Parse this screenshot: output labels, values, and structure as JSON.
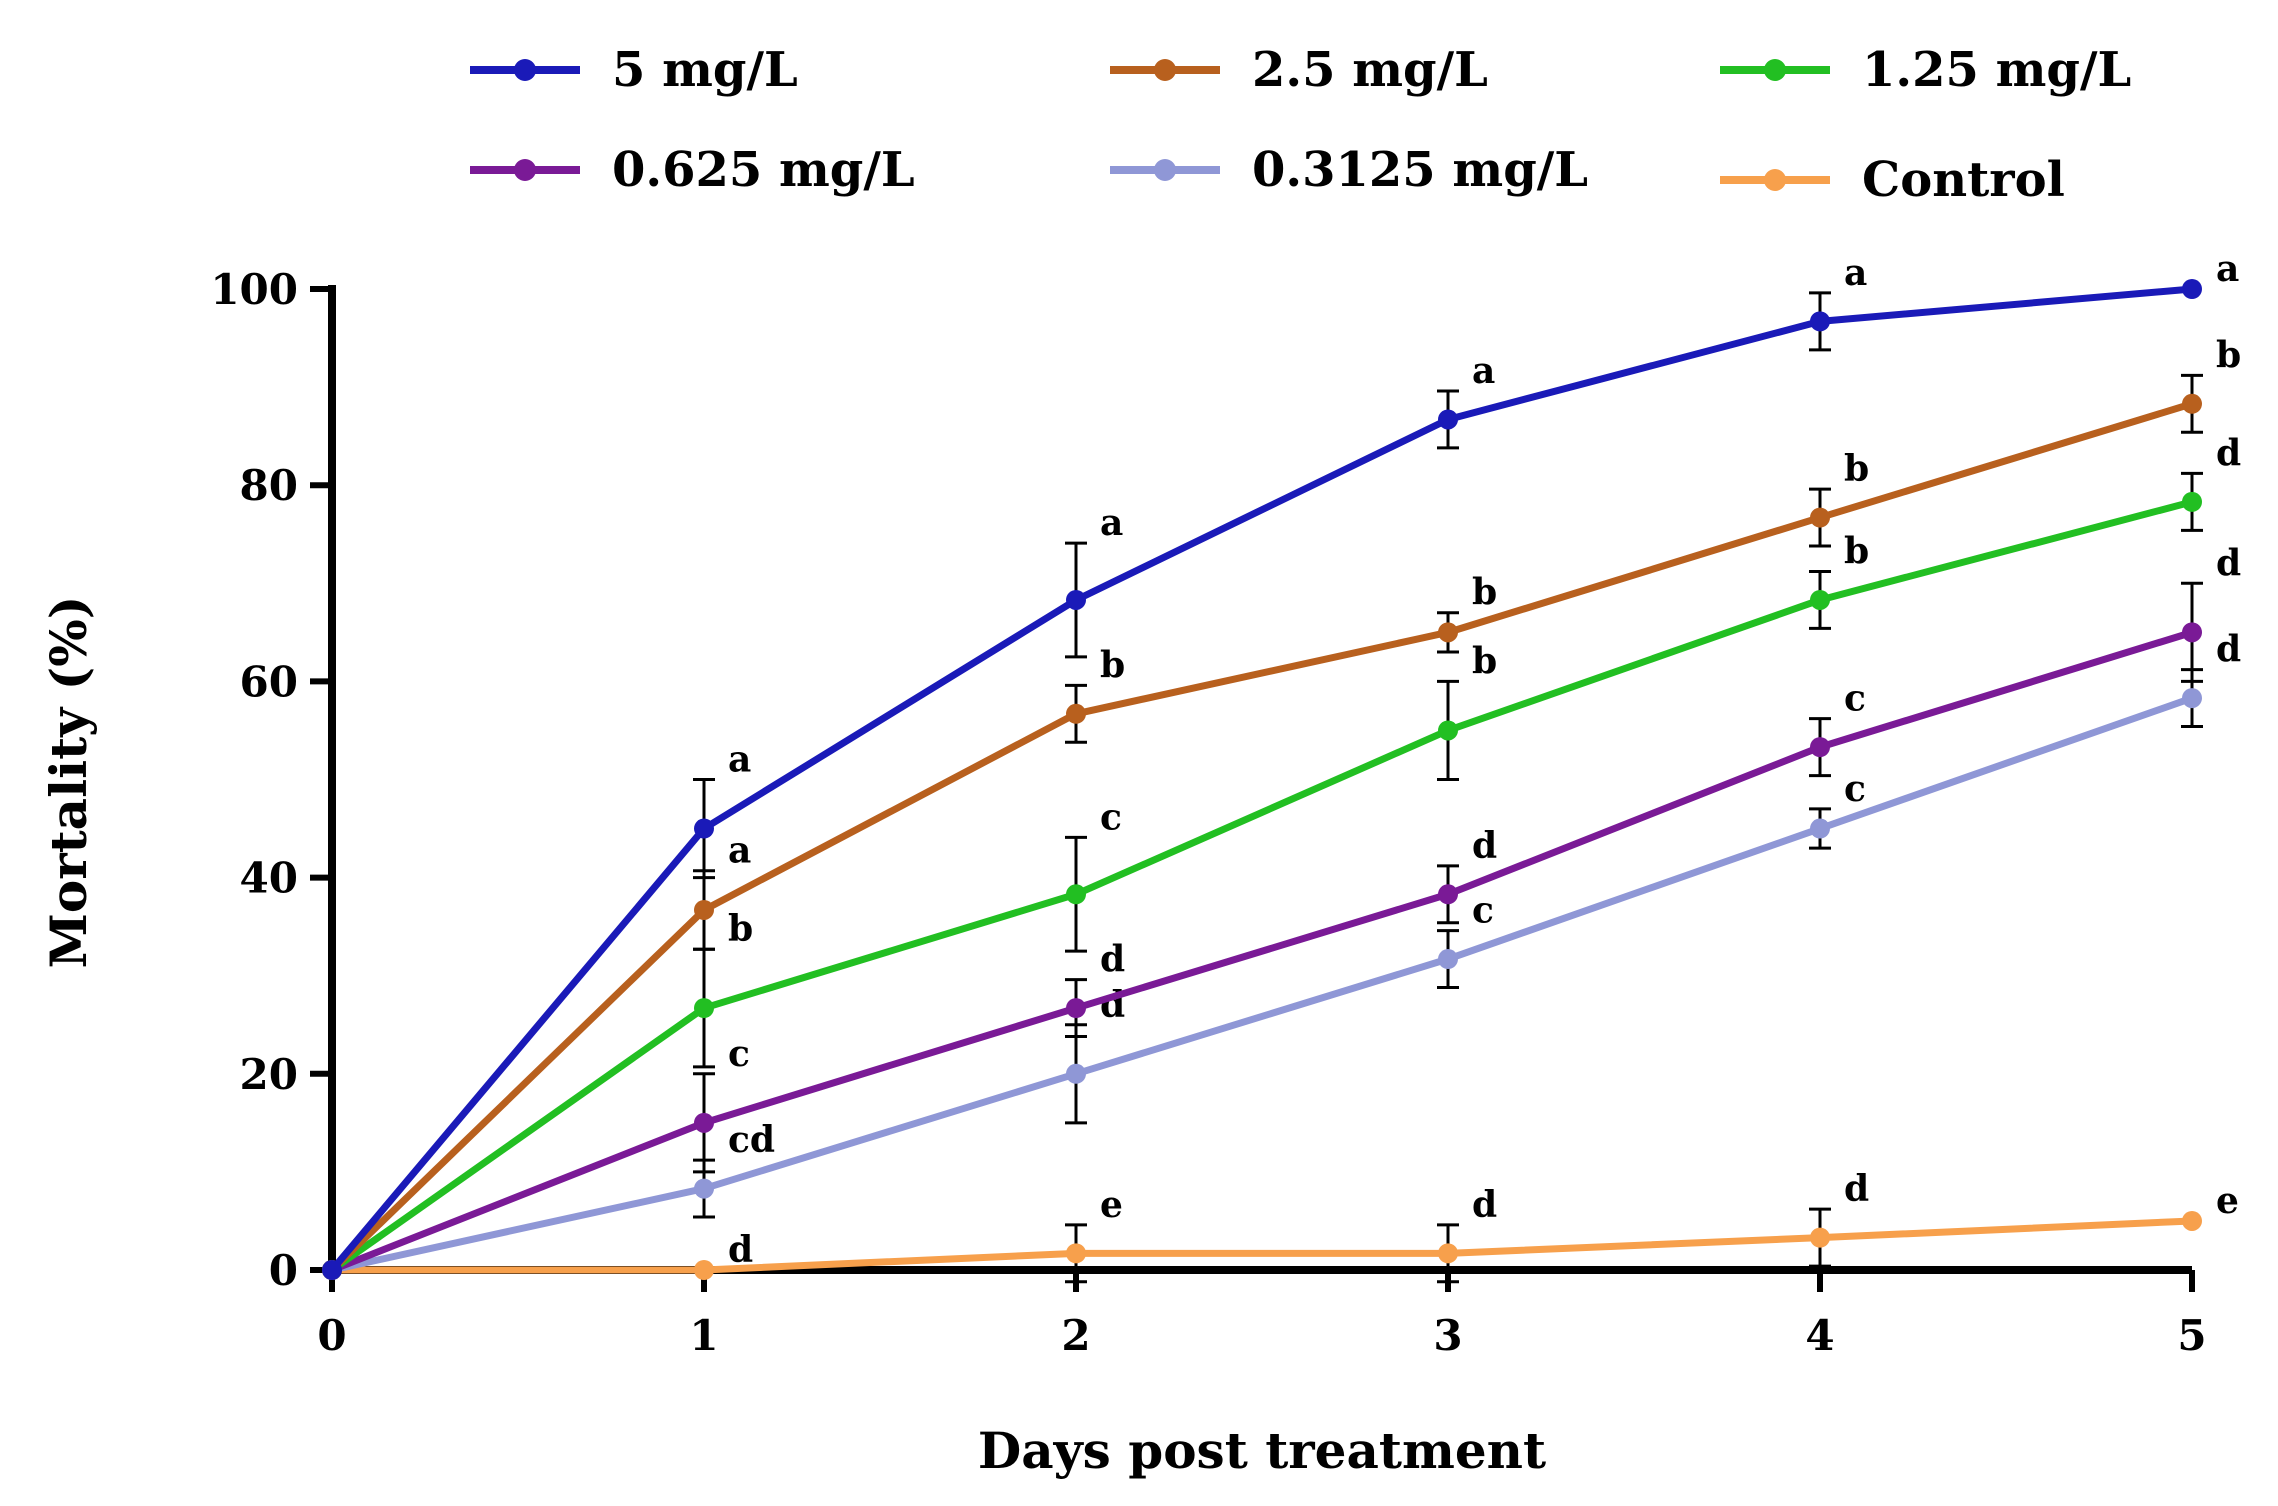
{
  "chart_data": {
    "type": "line",
    "title": "",
    "xlabel": "Days post treatment",
    "ylabel": "Mortality (%)",
    "x": [
      0,
      1,
      2,
      3,
      4,
      5
    ],
    "xlim": [
      0,
      5
    ],
    "ylim": [
      0,
      100
    ],
    "x_ticks": [
      "0",
      "1",
      "2",
      "3",
      "4",
      "5"
    ],
    "y_ticks": [
      "0",
      "20",
      "40",
      "60",
      "80",
      "100"
    ],
    "grid": false,
    "legend_position": "top",
    "series": [
      {
        "name": "5 mg/L",
        "color": "#1a1ab8",
        "values": [
          0,
          45,
          68.3,
          86.7,
          96.7,
          100
        ],
        "error": [
          0,
          5,
          5.8,
          2.9,
          2.9,
          0
        ],
        "labels": [
          "",
          "a",
          "a",
          "a",
          "a",
          "a"
        ]
      },
      {
        "name": "2.5 mg/L",
        "color": "#b8601e",
        "values": [
          0,
          36.7,
          56.7,
          65,
          76.7,
          88.3
        ],
        "error": [
          0,
          4,
          2.9,
          2,
          2.9,
          2.9
        ],
        "labels": [
          "",
          "a",
          "b",
          "b",
          "b",
          "b"
        ]
      },
      {
        "name": "1.25 mg/L",
        "color": "#22bf22",
        "values": [
          0,
          26.7,
          38.3,
          55,
          68.3,
          78.3
        ],
        "error": [
          0,
          6,
          5.8,
          5,
          2.9,
          2.9
        ],
        "labels": [
          "",
          "b",
          "c",
          "b",
          "b",
          "d"
        ]
      },
      {
        "name": "0.625 mg/L",
        "color": "#7a1a96",
        "values": [
          0,
          15,
          26.7,
          38.3,
          53.3,
          65
        ],
        "error": [
          0,
          5,
          2.9,
          2.9,
          2.9,
          5
        ],
        "labels": [
          "",
          "c",
          "d",
          "d",
          "c",
          "d"
        ]
      },
      {
        "name": "0.3125 mg/L",
        "color": "#8f97d6",
        "values": [
          0,
          8.3,
          20,
          31.7,
          45,
          58.3
        ],
        "error": [
          0,
          2.9,
          5,
          2.9,
          2,
          2.9
        ],
        "labels": [
          "",
          "cd",
          "d",
          "c",
          "c",
          "d"
        ]
      },
      {
        "name": "Control",
        "color": "#f7a04c",
        "values": [
          0,
          0,
          1.7,
          1.7,
          3.3,
          5
        ],
        "error": [
          0,
          0,
          2.9,
          2.9,
          2.9,
          0
        ],
        "labels": [
          "",
          "d",
          "e",
          "d",
          "d",
          "e"
        ]
      }
    ]
  }
}
